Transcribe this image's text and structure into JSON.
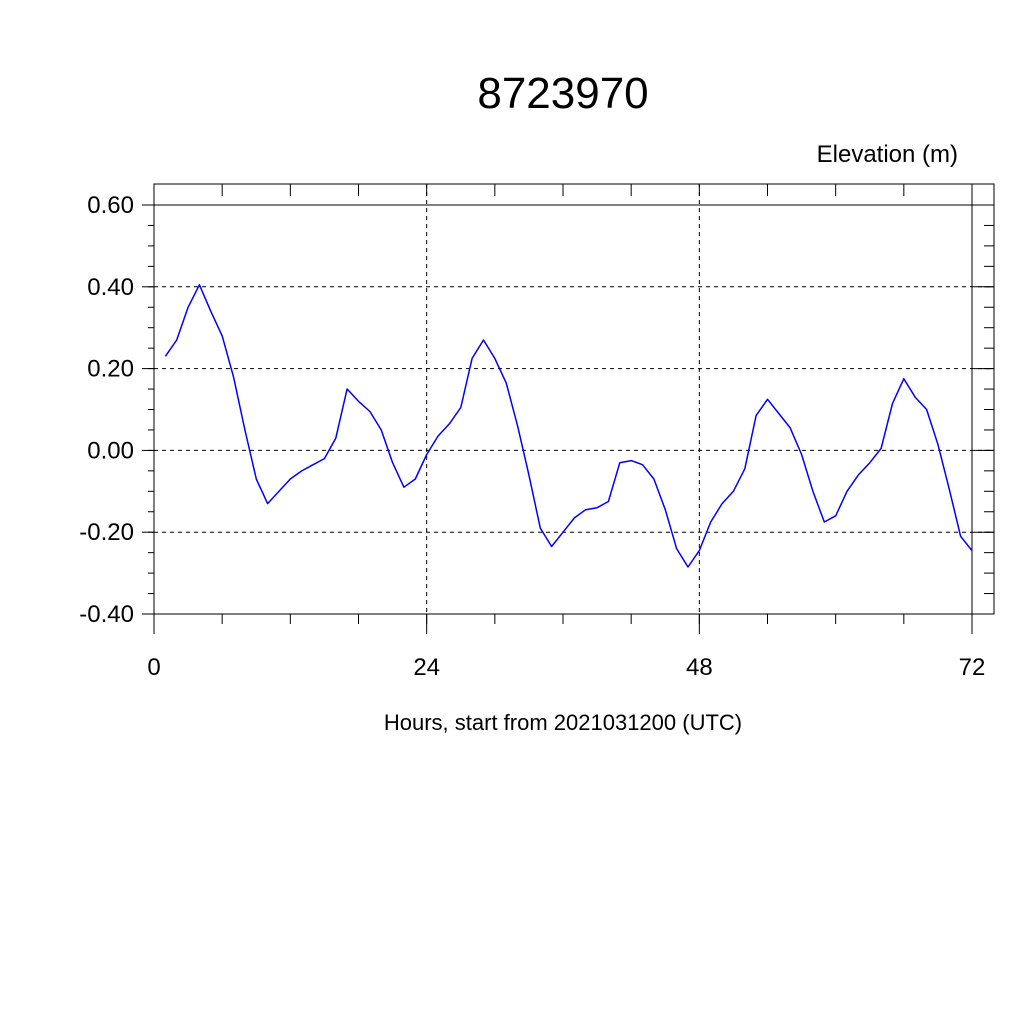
{
  "chart_data": {
    "type": "line",
    "title": "8723970",
    "ylabel": "Elevation (m)",
    "xlabel": "Hours, start from 2021031200 (UTC)",
    "xlim": [
      0,
      72
    ],
    "ylim": [
      -0.4,
      0.6
    ],
    "x_ticks": [
      0,
      24,
      48,
      72
    ],
    "x_tick_labels": [
      "0",
      "24",
      "48",
      "72"
    ],
    "y_ticks": [
      -0.4,
      -0.2,
      0.0,
      0.2,
      0.4,
      0.6
    ],
    "y_tick_labels": [
      "-0.40",
      "-0.20",
      "0.00",
      "0.20",
      "0.40",
      "0.60"
    ],
    "grid": true,
    "line_color": "#0000ff",
    "series": [
      {
        "x": [
          1,
          2,
          3,
          4,
          5,
          6,
          7,
          8,
          9,
          10,
          11,
          12,
          13,
          14,
          15,
          16,
          17,
          18,
          19,
          20,
          21,
          22,
          23,
          24,
          25,
          26,
          27,
          28,
          29,
          30,
          31,
          32,
          33,
          34,
          35,
          36,
          37,
          38,
          39,
          40,
          41,
          42,
          43,
          44,
          45,
          46,
          47,
          48,
          49,
          50,
          51,
          52,
          53,
          54,
          55,
          56,
          57,
          58,
          59,
          60,
          61,
          62,
          63,
          64,
          65,
          66,
          67,
          68,
          69,
          70,
          71,
          72
        ],
        "values": [
          0.23,
          0.27,
          0.35,
          0.405,
          0.34,
          0.28,
          0.18,
          0.05,
          -0.07,
          -0.13,
          -0.1,
          -0.07,
          -0.05,
          -0.035,
          -0.02,
          0.03,
          0.15,
          0.12,
          0.095,
          0.05,
          -0.03,
          -0.09,
          -0.07,
          -0.01,
          0.035,
          0.065,
          0.105,
          0.225,
          0.27,
          0.225,
          0.165,
          0.06,
          -0.06,
          -0.19,
          -0.235,
          -0.2,
          -0.165,
          -0.145,
          -0.14,
          -0.125,
          -0.03,
          -0.025,
          -0.035,
          -0.07,
          -0.145,
          -0.24,
          -0.285,
          -0.245,
          -0.175,
          -0.13,
          -0.1,
          -0.045,
          0.085,
          0.125,
          0.09,
          0.055,
          -0.01,
          -0.1,
          -0.175,
          -0.16,
          -0.1,
          -0.06,
          -0.03,
          0.005,
          0.115,
          0.175,
          0.13,
          0.1,
          0.015,
          -0.095,
          -0.21,
          -0.245
        ]
      }
    ]
  }
}
